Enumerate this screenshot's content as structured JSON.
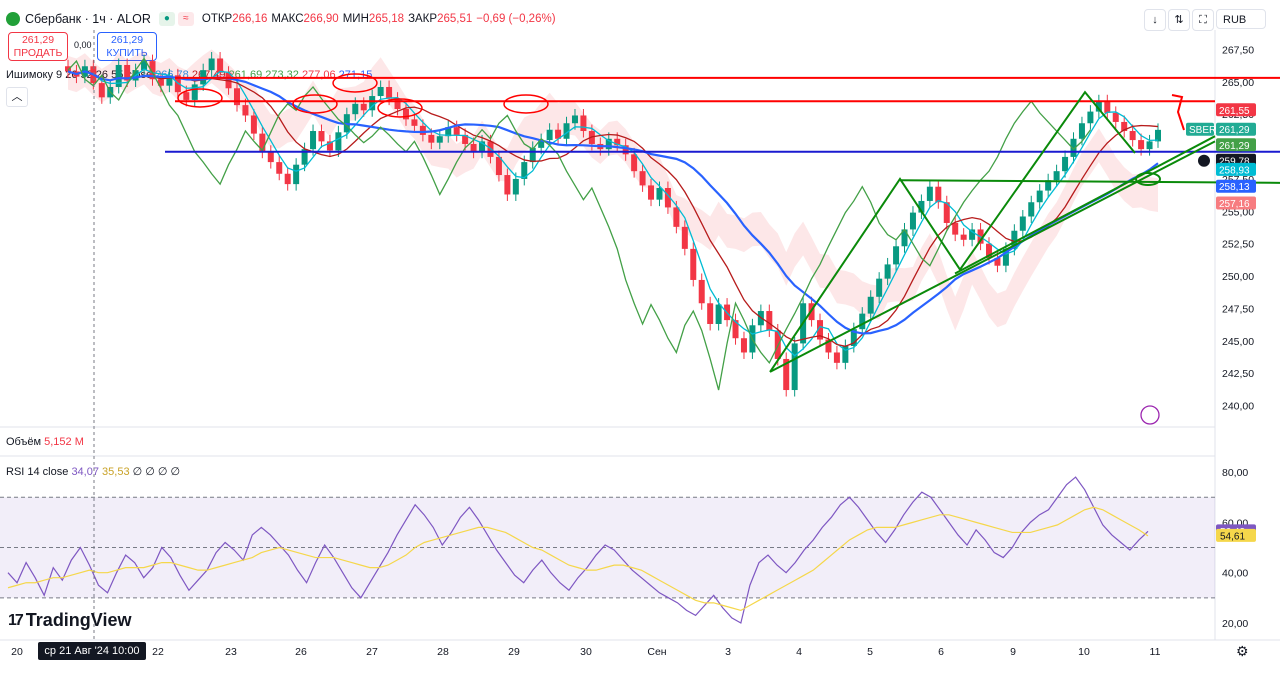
{
  "header": {
    "symbol": "Сбербанк · 1ч · ALOR",
    "open_label": "ОТКР",
    "open": "266,16",
    "high_label": "МАКС",
    "high": "266,90",
    "low_label": "МИН",
    "low": "265,18",
    "close_label": "ЗАКР",
    "close": "265,51",
    "change": "−0,69 (−0,26%)",
    "currency": "RUB"
  },
  "trade": {
    "sell_price": "261,29",
    "sell_label": "ПРОДАТЬ",
    "spread": "0,00",
    "buy_price": "261,29",
    "buy_label": "КУПИТЬ"
  },
  "ichimoku": {
    "label": "Ишимоку 9 26 52 26 55 close",
    "values": [
      "266,78",
      "267,49",
      "261,69",
      "273,32",
      "277,06",
      "271,15"
    ],
    "colors": [
      "#2196f3",
      "#b71c1c",
      "#43a047",
      "#43a047",
      "#f23645",
      "#2962ff"
    ]
  },
  "volume": {
    "label": "Объём",
    "value": "5,152 М"
  },
  "rsi": {
    "label": "RSI 14 close",
    "value1": "34,07",
    "value2": "35,53",
    "flags": "∅ ∅ ∅ ∅"
  },
  "branding": {
    "name": "TradingView"
  },
  "crosshair_date": "ср 21 Авг '24   10:00",
  "colors": {
    "up": "#089981",
    "down": "#f23645",
    "tenkan": "#00bcd4",
    "kijun": "#b71c1c",
    "chikou": "#43a047",
    "ma": "#2962ff",
    "rsi": "#7e57c2",
    "rsi_ma": "#f5d74b",
    "drawing_red": "#ff0000",
    "drawing_blue": "#1a1ad0",
    "drawing_green": "#0a8a0a"
  },
  "chart_data": [
    {
      "type": "candlestick",
      "title": "Сбербанк · 1ч · ALOR",
      "ylim": [
        238.5,
        269
      ],
      "y_ticks": [
        "267,50",
        "265,00",
        "262,50",
        "260,00",
        "257,50",
        "255,00",
        "252,50",
        "250,00",
        "247,50",
        "245,00",
        "242,50",
        "240,00"
      ],
      "x_labels": [
        "20",
        "22",
        "23",
        "26",
        "27",
        "28",
        "29",
        "30",
        "Сен",
        "3",
        "4",
        "5",
        "6",
        "9",
        "10",
        "11"
      ],
      "price_badges": [
        {
          "text": "261,55",
          "bg": "#f23645",
          "price": 262.8
        },
        {
          "text": "SBER",
          "bg": "#22ab94",
          "price": 261.3
        },
        {
          "text": "261,29",
          "bg": "#22ab94",
          "price": 261.3
        },
        {
          "text": "261,29",
          "bg": "#43a047",
          "price": 260.1
        },
        {
          "text": "259,78",
          "bg": "#131722",
          "price": 258.9
        },
        {
          "text": "258,93",
          "bg": "#00bcd4",
          "price": 258.2
        },
        {
          "text": "258,13",
          "bg": "#2962ff",
          "price": 256.9
        },
        {
          "text": "257,16",
          "bg": "#f77c80",
          "price": 255.6
        }
      ],
      "close_series": [
        265.8,
        265.4,
        266.2,
        264.9,
        263.8,
        264.6,
        266.3,
        265.1,
        265.9,
        266.6,
        265.2,
        264.7,
        265.5,
        264.2,
        263.6,
        264.8,
        265.9,
        266.8,
        265.7,
        264.5,
        263.2,
        262.4,
        261.0,
        259.6,
        258.8,
        257.9,
        257.1,
        258.6,
        259.8,
        261.2,
        260.4,
        259.7,
        261.1,
        262.5,
        263.3,
        262.8,
        263.9,
        264.6,
        263.7,
        262.9,
        262.1,
        261.6,
        260.9,
        260.3,
        260.8,
        261.5,
        260.9,
        260.2,
        259.6,
        260.4,
        259.2,
        257.8,
        256.3,
        257.5,
        258.8,
        259.9,
        260.5,
        261.3,
        260.6,
        261.8,
        262.4,
        261.2,
        260.2,
        259.8,
        260.6,
        260.1,
        259.4,
        258.1,
        257.0,
        255.9,
        256.8,
        255.3,
        253.8,
        252.1,
        249.7,
        247.9,
        246.3,
        247.8,
        246.6,
        245.2,
        244.1,
        246.2,
        247.3,
        245.8,
        243.6,
        241.2,
        244.8,
        247.9,
        246.6,
        245.1,
        244.1,
        243.3,
        244.6,
        245.9,
        247.1,
        248.4,
        249.8,
        250.9,
        252.3,
        253.6,
        254.9,
        255.8,
        256.9,
        255.7,
        254.1,
        253.2,
        252.8,
        253.6,
        252.5,
        251.4,
        250.8,
        252.1,
        253.5,
        254.6,
        255.7,
        256.6,
        257.4,
        258.1,
        259.2,
        260.6,
        261.8,
        262.7,
        263.5,
        262.6,
        261.9,
        261.2,
        260.5,
        259.8,
        260.4,
        261.29
      ]
    },
    {
      "type": "line",
      "title": "RSI 14 close",
      "ylim": [
        18,
        84
      ],
      "y_ticks": [
        "80,00",
        "60,00",
        "40,00",
        "20,00"
      ],
      "badges": [
        {
          "text": "56,43",
          "bg": "#7e57c2",
          "value": 56.43
        },
        {
          "text": "54,61",
          "bg": "#f5d74b",
          "value": 54.61
        }
      ],
      "series": [
        {
          "values": [
            40,
            36,
            44,
            38,
            31,
            42,
            37,
            45,
            50,
            43,
            35,
            32,
            40,
            47,
            44,
            38,
            42,
            50,
            46,
            39,
            33,
            37,
            41,
            48,
            52,
            49,
            45,
            55,
            58,
            55,
            51,
            47,
            41,
            36,
            44,
            51,
            46,
            40,
            34,
            30,
            36,
            42,
            48,
            55,
            61,
            67,
            63,
            58,
            51,
            56,
            62,
            66,
            61,
            55,
            49,
            44,
            39,
            36,
            41,
            45,
            40,
            36,
            33,
            38,
            42,
            47,
            51,
            49,
            45,
            41,
            38,
            35,
            32,
            30,
            28,
            25,
            23,
            27,
            31,
            26,
            22,
            20,
            35,
            44,
            47,
            43,
            40,
            44,
            49,
            53,
            58,
            62,
            67,
            70,
            66,
            61,
            56,
            52,
            57,
            63,
            68,
            72,
            70,
            65,
            60,
            55,
            51,
            57,
            53,
            48,
            46,
            50,
            56,
            60,
            63,
            65,
            70,
            75,
            78,
            73,
            66,
            59,
            55,
            52,
            49,
            53,
            56.43
          ]
        },
        {
          "values": [
            34,
            35,
            36,
            36,
            37,
            38,
            38,
            39,
            40,
            41,
            40,
            40,
            41,
            42,
            42,
            42,
            43,
            44,
            44,
            43,
            42,
            41,
            41,
            42,
            43,
            44,
            45,
            46,
            48,
            49,
            50,
            49,
            48,
            47,
            46,
            46,
            46,
            45,
            44,
            43,
            42,
            42,
            43,
            45,
            47,
            50,
            52,
            53,
            54,
            55,
            56,
            57,
            58,
            58,
            57,
            56,
            54,
            52,
            50,
            49,
            47,
            45,
            43,
            42,
            41,
            41,
            42,
            43,
            43,
            42,
            41,
            39,
            37,
            35,
            33,
            31,
            29,
            28,
            28,
            27,
            26,
            25,
            27,
            29,
            31,
            33,
            35,
            37,
            39,
            41,
            44,
            47,
            50,
            53,
            55,
            57,
            58,
            58,
            58,
            59,
            60,
            61,
            62,
            63,
            63,
            62,
            61,
            60,
            59,
            58,
            57,
            56,
            56,
            56,
            57,
            58,
            59,
            61,
            63,
            65,
            66,
            65,
            63,
            61,
            59,
            57,
            54.61
          ]
        }
      ]
    }
  ]
}
